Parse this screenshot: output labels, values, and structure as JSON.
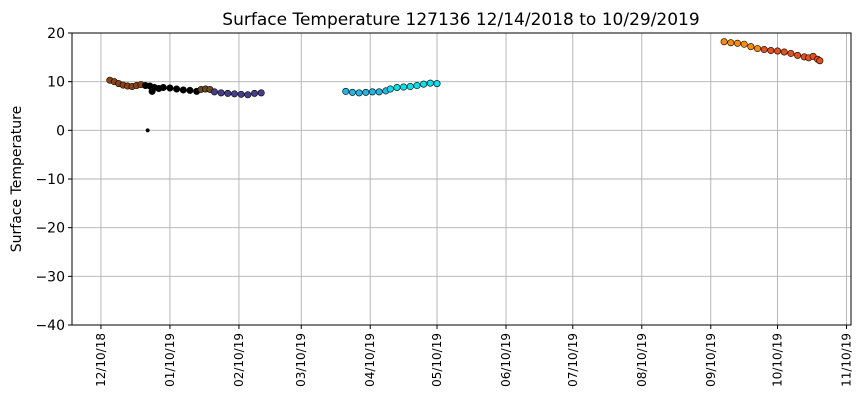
{
  "chart_data": {
    "type": "scatter",
    "title": "Surface Temperature 127136  12/14/2018 to 10/29/2019",
    "xlabel": "",
    "ylabel": "Surface Temperature",
    "ylim": [
      -40,
      20
    ],
    "yticks": [
      20,
      10,
      0,
      -10,
      -20,
      -30,
      -40
    ],
    "yticklabels": [
      "20",
      "10",
      "0",
      "−10",
      "−20",
      "−30",
      "−40"
    ],
    "xlim": [
      "2018-11-27",
      "2019-11-12"
    ],
    "xticks": [
      "2018-12-10",
      "2019-01-10",
      "2019-02-10",
      "2019-03-10",
      "2019-04-10",
      "2019-05-10",
      "2019-06-10",
      "2019-07-10",
      "2019-08-10",
      "2019-09-10",
      "2019-10-10",
      "2019-11-10"
    ],
    "xticklabels": [
      "12/10/18",
      "01/10/19",
      "02/10/19",
      "03/10/19",
      "04/10/19",
      "05/10/19",
      "06/10/19",
      "07/10/19",
      "08/10/19",
      "09/10/19",
      "10/10/19",
      "11/10/19"
    ],
    "grid": true,
    "series": [
      {
        "color": "#8b4513",
        "points": [
          [
            "2018-12-14",
            10.3
          ],
          [
            "2018-12-16",
            10.0
          ],
          [
            "2018-12-18",
            9.6
          ],
          [
            "2018-12-20",
            9.3
          ],
          [
            "2018-12-22",
            9.1
          ],
          [
            "2018-12-24",
            9.0
          ],
          [
            "2018-12-26",
            9.2
          ],
          [
            "2018-12-28",
            9.4
          ]
        ]
      },
      {
        "color": "#000000",
        "points": [
          [
            "2018-12-30",
            9.2
          ],
          [
            "2019-01-01",
            9.1
          ],
          [
            "2019-01-03",
            8.8
          ],
          [
            "2019-01-05",
            8.6
          ],
          [
            "2019-01-07",
            8.8
          ],
          [
            "2019-01-10",
            8.7
          ],
          [
            "2019-01-13",
            8.5
          ],
          [
            "2019-01-16",
            8.3
          ],
          [
            "2019-01-19",
            8.2
          ],
          [
            "2019-01-22",
            8.0
          ],
          [
            "2018-12-31",
            0.0
          ],
          [
            "2019-01-02",
            8.0
          ]
        ]
      },
      {
        "color": "#6b4a1e",
        "points": [
          [
            "2019-01-24",
            8.4
          ],
          [
            "2019-01-26",
            8.5
          ],
          [
            "2019-01-28",
            8.4
          ]
        ]
      },
      {
        "color": "#483d8b",
        "points": [
          [
            "2019-01-30",
            7.9
          ],
          [
            "2019-02-02",
            7.7
          ],
          [
            "2019-02-05",
            7.6
          ],
          [
            "2019-02-08",
            7.5
          ],
          [
            "2019-02-11",
            7.4
          ],
          [
            "2019-02-14",
            7.3
          ],
          [
            "2019-02-17",
            7.6
          ],
          [
            "2019-02-20",
            7.7
          ]
        ]
      },
      {
        "color": "#1fb6e8",
        "points": [
          [
            "2019-03-30",
            8.0
          ],
          [
            "2019-04-02",
            7.8
          ],
          [
            "2019-04-05",
            7.7
          ],
          [
            "2019-04-08",
            7.8
          ],
          [
            "2019-04-11",
            7.9
          ],
          [
            "2019-04-14",
            7.9
          ],
          [
            "2019-04-17",
            8.1
          ]
        ]
      },
      {
        "color": "#00e5ee",
        "points": [
          [
            "2019-04-19",
            8.5
          ],
          [
            "2019-04-22",
            8.8
          ],
          [
            "2019-04-25",
            8.9
          ],
          [
            "2019-04-28",
            9.0
          ],
          [
            "2019-05-01",
            9.2
          ],
          [
            "2019-05-04",
            9.5
          ],
          [
            "2019-05-07",
            9.7
          ],
          [
            "2019-05-10",
            9.6
          ]
        ]
      },
      {
        "color": "#ff8c00",
        "points": [
          [
            "2019-09-16",
            18.2
          ],
          [
            "2019-09-19",
            18.0
          ],
          [
            "2019-09-22",
            17.9
          ],
          [
            "2019-09-25",
            17.7
          ],
          [
            "2019-09-28",
            17.2
          ],
          [
            "2019-10-01",
            16.8
          ]
        ]
      },
      {
        "color": "#e8501a",
        "points": [
          [
            "2019-10-04",
            16.6
          ],
          [
            "2019-10-07",
            16.4
          ],
          [
            "2019-10-10",
            16.3
          ],
          [
            "2019-10-13",
            16.1
          ],
          [
            "2019-10-16",
            15.8
          ],
          [
            "2019-10-19",
            15.4
          ],
          [
            "2019-10-22",
            15.1
          ],
          [
            "2019-10-24",
            14.9
          ],
          [
            "2019-10-26",
            15.2
          ],
          [
            "2019-10-28",
            14.6
          ],
          [
            "2019-10-29",
            14.3
          ]
        ]
      }
    ]
  }
}
